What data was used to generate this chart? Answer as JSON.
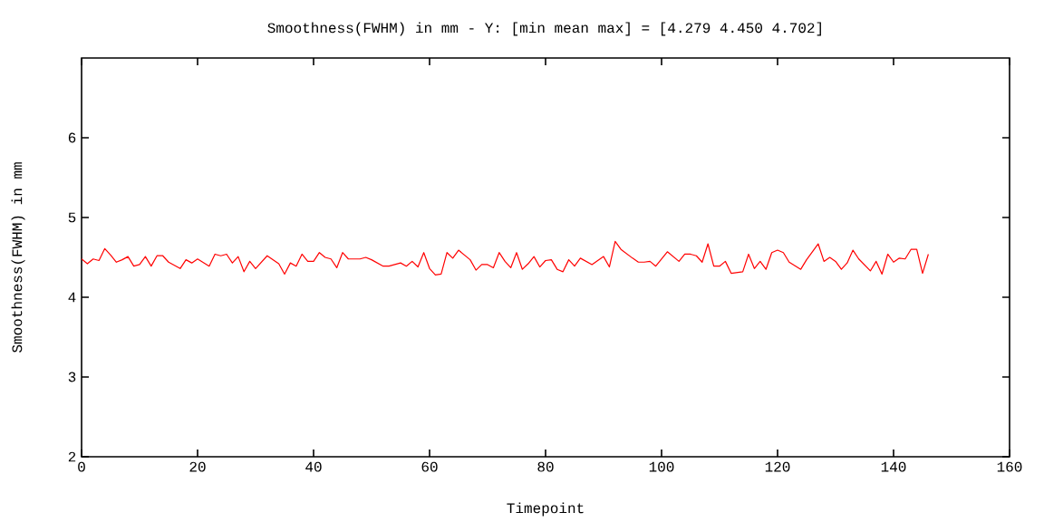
{
  "chart_data": {
    "type": "line",
    "title": "Smoothness(FWHM) in mm - Y: [min mean max] = [4.279 4.450 4.702]",
    "xlabel": "Timepoint",
    "ylabel": "Smoothness(FWHM) in mm",
    "xlim": [
      0,
      160
    ],
    "xticks": [
      0,
      20,
      40,
      60,
      80,
      100,
      120,
      140,
      160
    ],
    "ylim": [
      2,
      7
    ],
    "yticks": [
      2,
      3,
      4,
      5,
      6
    ],
    "grid": false,
    "marker": "none",
    "line_style": "solid",
    "series": [
      {
        "color": "#ff0000",
        "x": [
          0,
          1,
          2,
          3,
          4,
          5,
          6,
          7,
          8,
          9,
          10,
          11,
          12,
          13,
          14,
          15,
          17,
          18,
          19,
          20,
          22,
          23,
          24,
          25,
          26,
          27,
          28,
          29,
          30,
          32,
          34,
          35,
          36,
          37,
          38,
          39,
          40,
          41,
          42,
          43,
          44,
          45,
          46,
          48,
          49,
          50,
          52,
          53,
          55,
          56,
          57,
          58,
          59,
          60,
          61,
          62,
          63,
          64,
          65,
          66,
          67,
          68,
          69,
          70,
          71,
          72,
          73,
          74,
          75,
          76,
          77,
          78,
          79,
          80,
          81,
          82,
          83,
          84,
          85,
          86,
          88,
          90,
          91,
          92,
          93,
          95,
          96,
          97,
          98,
          99,
          101,
          103,
          104,
          105,
          106,
          107,
          108,
          109,
          110,
          111,
          112,
          114,
          115,
          116,
          117,
          118,
          119,
          120,
          121,
          122,
          124,
          125,
          127,
          128,
          129,
          130,
          131,
          132,
          133,
          134,
          136,
          137,
          138,
          139,
          140,
          141,
          142,
          143,
          144,
          145,
          146
        ],
        "values": [
          4.48,
          4.42,
          4.48,
          4.46,
          4.61,
          4.53,
          4.44,
          4.47,
          4.51,
          4.39,
          4.41,
          4.51,
          4.39,
          4.52,
          4.52,
          4.44,
          4.36,
          4.47,
          4.43,
          4.48,
          4.39,
          4.54,
          4.52,
          4.54,
          4.43,
          4.51,
          4.32,
          4.45,
          4.36,
          4.52,
          4.42,
          4.29,
          4.43,
          4.39,
          4.54,
          4.45,
          4.45,
          4.56,
          4.5,
          4.48,
          4.37,
          4.56,
          4.48,
          4.48,
          4.5,
          4.47,
          4.39,
          4.39,
          4.43,
          4.39,
          4.45,
          4.38,
          4.56,
          4.36,
          4.28,
          4.29,
          4.56,
          4.49,
          4.59,
          4.53,
          4.47,
          4.34,
          4.41,
          4.41,
          4.37,
          4.56,
          4.45,
          4.37,
          4.56,
          4.35,
          4.42,
          4.51,
          4.38,
          4.46,
          4.47,
          4.35,
          4.32,
          4.47,
          4.39,
          4.49,
          4.41,
          4.51,
          4.38,
          4.7,
          4.6,
          4.49,
          4.44,
          4.44,
          4.45,
          4.39,
          4.57,
          4.45,
          4.54,
          4.54,
          4.52,
          4.44,
          4.67,
          4.39,
          4.39,
          4.45,
          4.3,
          4.32,
          4.54,
          4.36,
          4.45,
          4.35,
          4.56,
          4.59,
          4.56,
          4.44,
          4.35,
          4.47,
          4.67,
          4.45,
          4.5,
          4.45,
          4.35,
          4.43,
          4.59,
          4.48,
          4.33,
          4.45,
          4.29,
          4.54,
          4.44,
          4.49,
          4.48,
          4.6,
          4.6,
          4.3,
          4.54
        ]
      }
    ]
  }
}
